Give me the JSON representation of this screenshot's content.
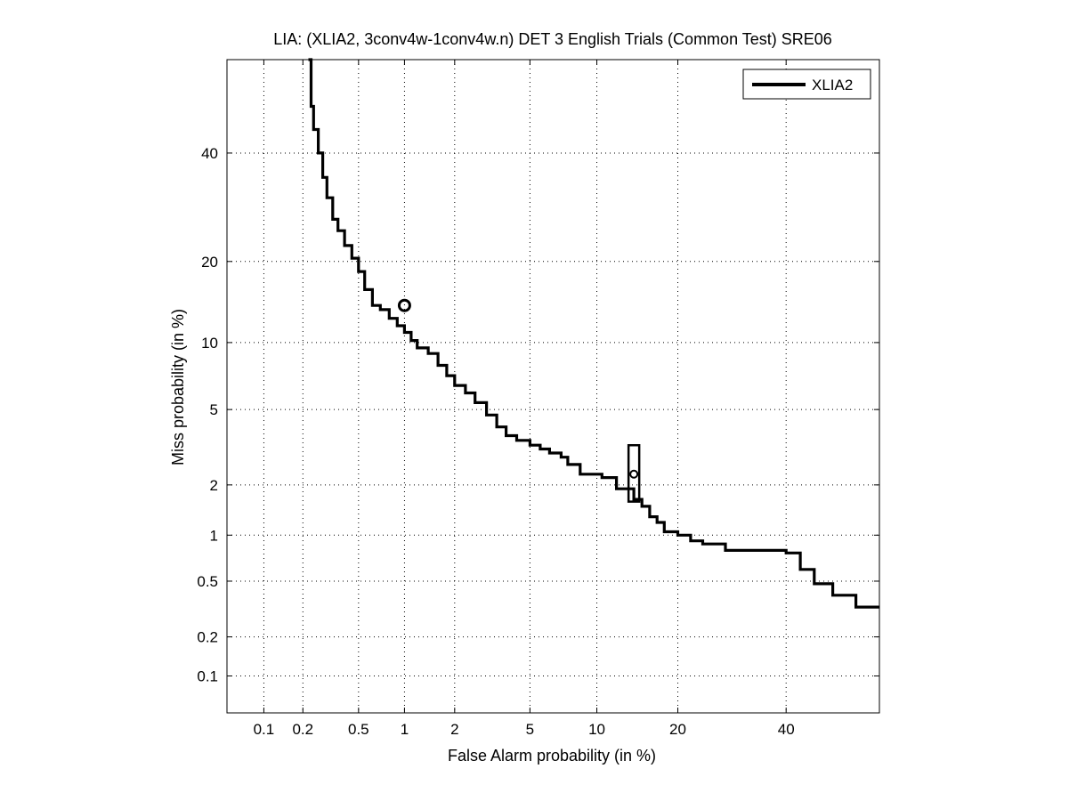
{
  "chart_data": {
    "type": "line",
    "scale": "normal-deviate (DET)",
    "title": "LIA: (XLIA2, 3conv4w-1conv4w.n) DET 3 English Trials (Common Test) SRE06",
    "xlabel": "False Alarm probability (in %)",
    "ylabel": "Miss probability (in %)",
    "xlim": [
      0.05,
      60
    ],
    "ylim": [
      0.05,
      60
    ],
    "grid": true,
    "legend_position": "top-right",
    "x_ticks": [
      0.1,
      0.2,
      0.5,
      1,
      2,
      5,
      10,
      20,
      40
    ],
    "x_tick_labels": [
      "0.1",
      "0.2",
      "0.5",
      "1",
      "2",
      "5",
      "10",
      "20",
      "40"
    ],
    "y_ticks": [
      0.1,
      0.2,
      0.5,
      1,
      2,
      5,
      10,
      20,
      40
    ],
    "y_tick_labels": [
      "0.1",
      "0.2",
      "0.5",
      "1",
      "2",
      "5",
      "10",
      "20",
      "40"
    ],
    "series": [
      {
        "name": "XLIA2",
        "color": "#000000",
        "x": [
          0.22,
          0.23,
          0.24,
          0.26,
          0.28,
          0.3,
          0.33,
          0.36,
          0.4,
          0.45,
          0.5,
          0.55,
          0.62,
          0.7,
          0.8,
          0.9,
          1.0,
          1.1,
          1.2,
          1.4,
          1.6,
          1.8,
          2.0,
          2.3,
          2.6,
          3.0,
          3.4,
          3.8,
          4.3,
          5.0,
          5.6,
          6.2,
          7.0,
          7.5,
          8.5,
          9.5,
          10.5,
          12.0,
          14.0,
          15.0,
          16.0,
          17.0,
          18.0,
          20.0,
          22.0,
          24.0,
          28.0,
          32.0,
          35.0,
          40.0,
          43.0,
          46.0,
          50.0,
          55.0,
          60.0
        ],
        "y": [
          60,
          50,
          45,
          40,
          35,
          31,
          27,
          25,
          22.5,
          20.5,
          18.5,
          16,
          14,
          13.5,
          12.5,
          11.7,
          11,
          10.2,
          9.5,
          9.0,
          8.0,
          7.2,
          6.5,
          6.0,
          5.4,
          4.7,
          4.1,
          3.7,
          3.5,
          3.3,
          3.15,
          3.0,
          2.85,
          2.6,
          2.3,
          2.3,
          2.2,
          1.9,
          1.65,
          1.5,
          1.3,
          1.2,
          1.05,
          1.0,
          0.92,
          0.88,
          0.8,
          0.8,
          0.8,
          0.77,
          0.6,
          0.48,
          0.4,
          0.33,
          0.33
        ]
      }
    ],
    "markers": [
      {
        "label": "min DCF point",
        "shape": "circle",
        "x": 1.0,
        "y": 14.0
      },
      {
        "label": "actual decision point",
        "shape": "circle with confidence box",
        "x": 14.0,
        "y": 2.3,
        "y_range": [
          1.6,
          3.3
        ]
      }
    ]
  }
}
